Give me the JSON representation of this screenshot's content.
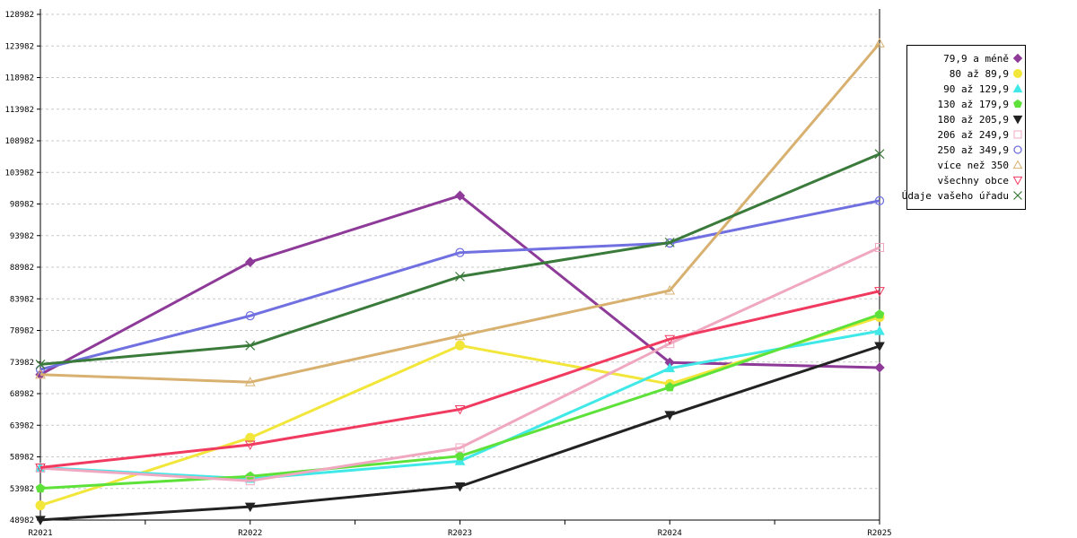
{
  "chart_data": {
    "type": "line",
    "categories": [
      "R2021",
      "R2022",
      "R2023",
      "R2024",
      "R2025"
    ],
    "y_ticks": [
      "48982",
      "53982",
      "58982",
      "63982",
      "68982",
      "73982",
      "78982",
      "83982",
      "88982",
      "93982",
      "98982",
      "103982",
      "108982",
      "113982",
      "118982",
      "123982",
      "128982"
    ],
    "ylim": [
      48982,
      128982
    ],
    "grid": true,
    "legend_placement": "right",
    "series": [
      {
        "name": "79,9 a méně",
        "color": "#8e3a98",
        "marker": "diamond",
        "values": [
          72000,
          89800,
          100300,
          73900,
          73100
        ]
      },
      {
        "name": "80 až 89,9",
        "color": "#f2e63a",
        "marker": "circle-filled",
        "values": [
          51300,
          62000,
          76600,
          70500,
          81100
        ]
      },
      {
        "name": "90 až 129,9",
        "color": "#40e8e8",
        "marker": "triangle-up",
        "values": [
          57300,
          55500,
          58300,
          73000,
          78900
        ]
      },
      {
        "name": "130 až 179,9",
        "color": "#5ee23a",
        "marker": "pentagon",
        "values": [
          54000,
          55900,
          59100,
          70000,
          81500
        ]
      },
      {
        "name": "180 až 205,9",
        "color": "#222222",
        "marker": "triangle-down",
        "values": [
          49000,
          51100,
          54300,
          65600,
          76500
        ]
      },
      {
        "name": "206 až 249,9",
        "color": "#f0a8c0",
        "marker": "square-open",
        "values": [
          57200,
          55200,
          60400,
          76900,
          92100
        ]
      },
      {
        "name": "250 až 349,9",
        "color": "#7070e0",
        "marker": "circle-open",
        "values": [
          72800,
          81300,
          91300,
          92800,
          99500
        ]
      },
      {
        "name": "více než 350",
        "color": "#d8b070",
        "marker": "triangle-up-open",
        "values": [
          72000,
          70800,
          78100,
          85300,
          124400
        ]
      },
      {
        "name": "všechny obce",
        "color": "#f03a60",
        "marker": "triangle-down-open",
        "values": [
          57300,
          60900,
          66500,
          77600,
          85200
        ]
      },
      {
        "name": "Údaje vašeho úřadu",
        "color": "#3a7a3a",
        "marker": "x",
        "values": [
          73600,
          76600,
          87500,
          92900,
          106900
        ]
      }
    ]
  }
}
